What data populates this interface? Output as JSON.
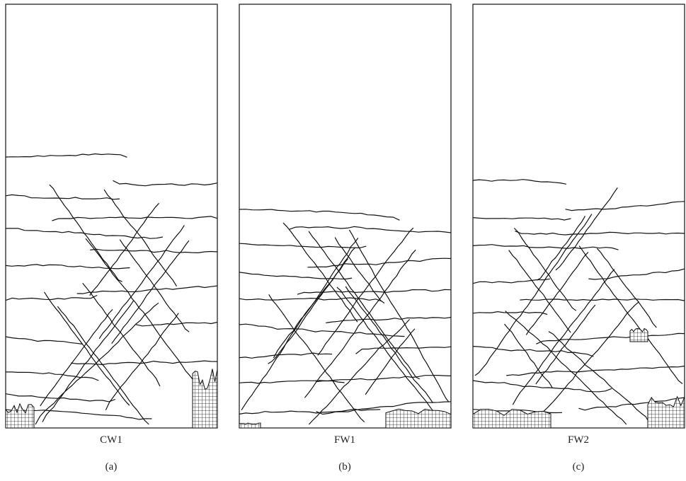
{
  "panels": [
    {
      "name": "CW1",
      "label": "(a)"
    },
    {
      "name": "FW1",
      "label": "(b)"
    },
    {
      "name": "FW2",
      "label": "(c)"
    }
  ]
}
